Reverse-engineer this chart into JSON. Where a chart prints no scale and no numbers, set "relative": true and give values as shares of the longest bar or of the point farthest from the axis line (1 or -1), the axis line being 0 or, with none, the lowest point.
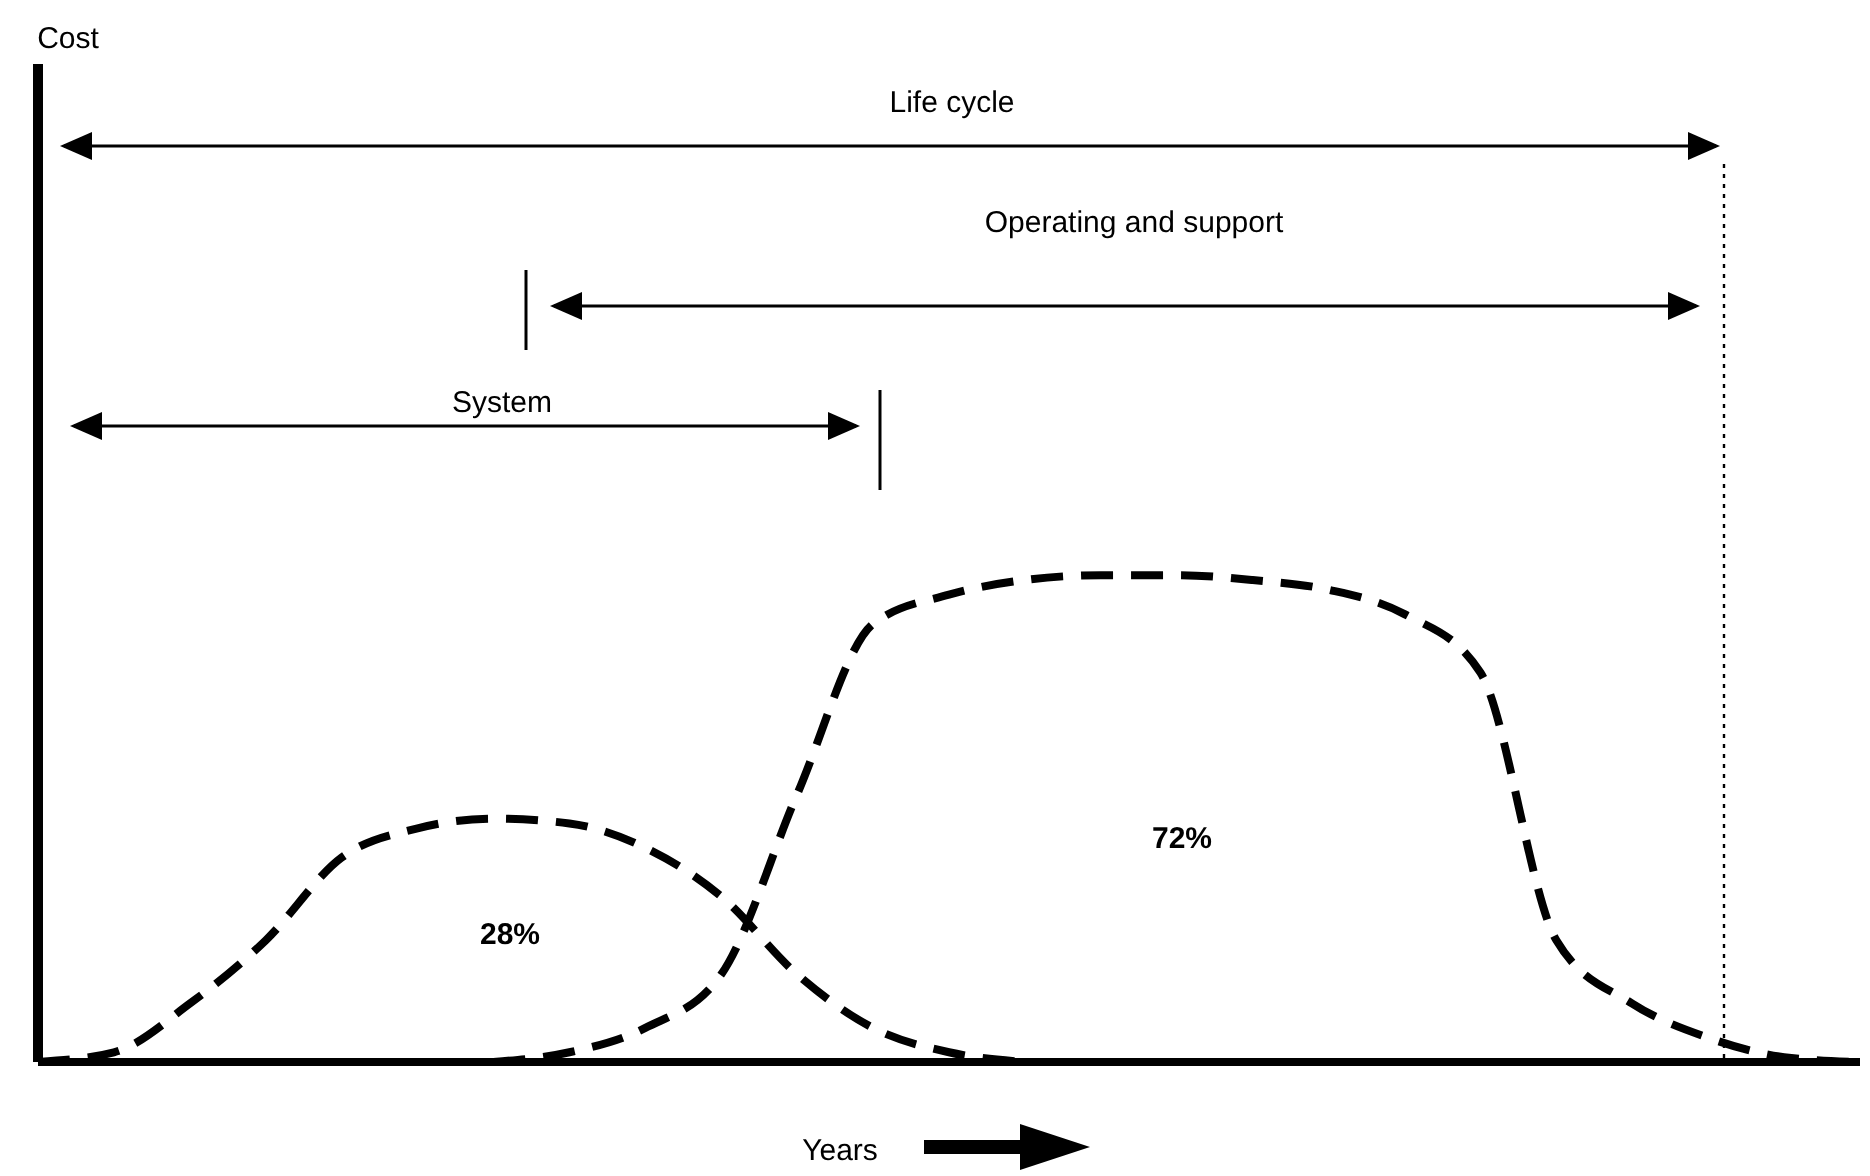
{
  "chart_data": {
    "type": "line",
    "relative": true,
    "xlabel": "Years",
    "line_style": "dashed",
    "marker": "none",
    "legend": false,
    "grid": false,
    "categories": [
      null,
      null,
      null,
      null,
      null,
      null,
      null,
      null,
      null,
      null,
      null,
      null,
      null,
      null,
      null,
      null,
      null,
      null,
      null,
      null,
      null,
      null,
      null,
      null,
      null
    ],
    "series": [
      {
        "color": "#000000",
        "values": [
          0,
          0.02,
          0.12,
          0.25,
          0.42,
          0.48,
          0.5,
          0.49,
          0.44,
          0.34,
          0.18,
          0.07,
          0.02,
          0,
          null,
          null,
          null,
          null,
          null,
          null,
          null,
          null,
          null,
          null,
          null
        ]
      },
      {
        "color": "#000000",
        "values": [
          null,
          null,
          null,
          null,
          null,
          null,
          0,
          0.02,
          0.07,
          0.18,
          0.55,
          0.9,
          0.96,
          0.99,
          1,
          1,
          0.99,
          0.97,
          0.92,
          0.8,
          0.25,
          0.12,
          0.05,
          0.01,
          0
        ]
      }
    ],
    "annotations": [
      "Life cycle",
      "Operating and support",
      "System",
      "28%",
      "72%",
      "Cost"
    ]
  }
}
